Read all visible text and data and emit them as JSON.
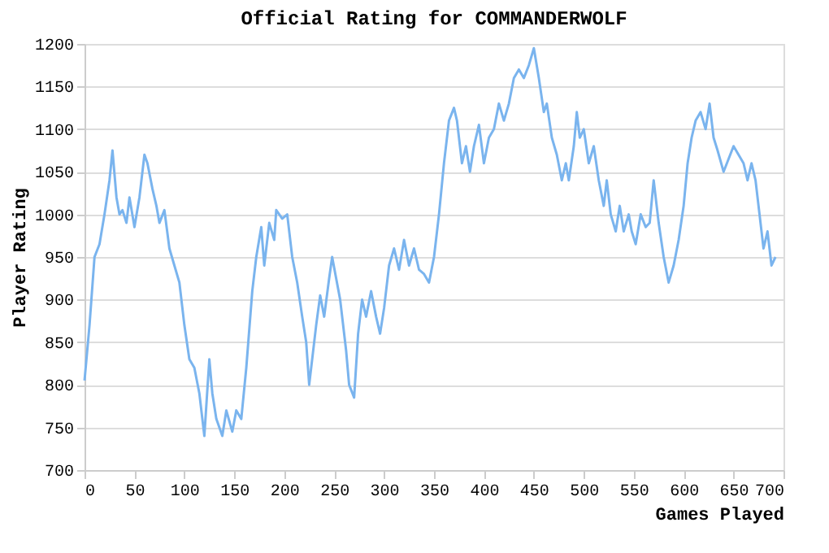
{
  "chart_data": {
    "type": "line",
    "title": "Official Rating for COMMANDERWOLF",
    "xlabel": "Games Played",
    "ylabel": "Player Rating",
    "xlim": [
      0,
      700
    ],
    "xticks": [
      0,
      50,
      100,
      150,
      200,
      250,
      300,
      350,
      400,
      450,
      500,
      550,
      600,
      650,
      700
    ],
    "ylim": [
      700,
      1200
    ],
    "yticks": [
      700,
      750,
      800,
      850,
      900,
      950,
      1000,
      1050,
      1100,
      1150,
      1200
    ],
    "grid": "y",
    "legend": false,
    "marker": "none",
    "line_style": "solid",
    "series": [
      {
        "color": "#7ab4ee",
        "x": [
          0,
          5,
          10,
          15,
          20,
          25,
          28,
          32,
          35,
          38,
          42,
          45,
          50,
          55,
          60,
          63,
          68,
          72,
          75,
          80,
          85,
          90,
          95,
          100,
          105,
          110,
          115,
          120,
          125,
          128,
          132,
          138,
          142,
          148,
          152,
          157,
          162,
          168,
          172,
          177,
          180,
          185,
          190,
          192,
          198,
          203,
          208,
          213,
          218,
          222,
          225,
          232,
          236,
          240,
          245,
          248,
          252,
          256,
          262,
          265,
          270,
          274,
          278,
          282,
          287,
          292,
          296,
          300,
          305,
          310,
          315,
          320,
          325,
          330,
          335,
          340,
          345,
          350,
          355,
          360,
          365,
          370,
          373,
          378,
          382,
          386,
          390,
          395,
          400,
          405,
          410,
          415,
          420,
          425,
          430,
          435,
          440,
          445,
          450,
          455,
          460,
          463,
          468,
          473,
          478,
          482,
          485,
          490,
          493,
          496,
          500,
          505,
          510,
          515,
          520,
          523,
          527,
          532,
          536,
          540,
          545,
          548,
          552,
          557,
          562,
          566,
          570,
          575,
          580,
          585,
          590,
          595,
          600,
          604,
          608,
          612,
          617,
          622,
          626,
          630,
          634,
          640,
          645,
          650,
          655,
          660,
          664,
          668,
          672,
          676,
          680,
          684,
          688,
          692
        ],
        "values": [
          805,
          870,
          950,
          965,
          1000,
          1040,
          1075,
          1020,
          1000,
          1005,
          990,
          1020,
          985,
          1020,
          1070,
          1060,
          1030,
          1010,
          990,
          1005,
          960,
          940,
          920,
          870,
          830,
          820,
          790,
          740,
          830,
          790,
          760,
          740,
          770,
          745,
          770,
          760,
          820,
          910,
          950,
          985,
          940,
          990,
          970,
          1005,
          995,
          1000,
          950,
          920,
          880,
          850,
          800,
          870,
          905,
          880,
          925,
          950,
          925,
          900,
          840,
          800,
          785,
          860,
          900,
          880,
          910,
          880,
          860,
          890,
          940,
          960,
          935,
          970,
          940,
          960,
          935,
          930,
          920,
          950,
          1000,
          1060,
          1110,
          1125,
          1110,
          1060,
          1080,
          1050,
          1080,
          1105,
          1060,
          1090,
          1100,
          1130,
          1110,
          1130,
          1160,
          1170,
          1160,
          1175,
          1195,
          1160,
          1120,
          1130,
          1090,
          1070,
          1040,
          1060,
          1040,
          1080,
          1120,
          1090,
          1100,
          1060,
          1080,
          1040,
          1010,
          1040,
          1000,
          980,
          1010,
          980,
          1000,
          980,
          965,
          1000,
          985,
          990,
          1040,
          990,
          950,
          920,
          940,
          970,
          1010,
          1060,
          1090,
          1110,
          1120,
          1100,
          1130,
          1090,
          1075,
          1050,
          1065,
          1080,
          1070,
          1060,
          1040,
          1060,
          1040,
          1000,
          960,
          980,
          940,
          950
        ]
      }
    ]
  }
}
